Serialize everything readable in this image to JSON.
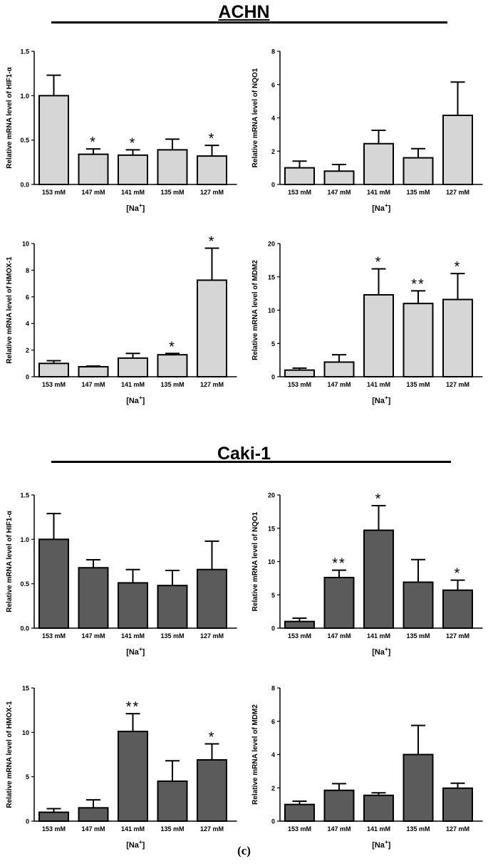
{
  "figure": {
    "sections": [
      {
        "title": "ACHN"
      },
      {
        "title": "Caki-1"
      }
    ],
    "caption": "(c)",
    "colors": {
      "achn_bar": "#d6d6d6",
      "caki_bar": "#5b5b5b",
      "axis": "#000000"
    }
  },
  "chart_data": [
    {
      "type": "bar",
      "cell_line": "ACHN",
      "title": "",
      "xlabel": "[Na+]",
      "xlabel_main": "[Na",
      "xlabel_sup": "+",
      "xlabel_end": "]",
      "ylabel": "Relative mRNA level of HIF1-α",
      "categories": [
        "153 mM",
        "147 mM",
        "141 mM",
        "135 mM",
        "127 mM"
      ],
      "values": [
        1.0,
        0.34,
        0.33,
        0.39,
        0.32
      ],
      "errors": [
        0.23,
        0.06,
        0.06,
        0.12,
        0.12
      ],
      "significance": [
        "",
        "*",
        "*",
        "",
        "*"
      ],
      "ylim": [
        0,
        1.5
      ],
      "yticks": [
        "0.0",
        "0.5",
        "1.0",
        "1.5"
      ],
      "grid": false
    },
    {
      "type": "bar",
      "cell_line": "ACHN",
      "title": "",
      "xlabel": "[Na+]",
      "xlabel_main": "[Na",
      "xlabel_sup": "+",
      "xlabel_end": "]",
      "ylabel": "Relative mRNA level of NQO1",
      "categories": [
        "153 mM",
        "147 mM",
        "141 mM",
        "135 mM",
        "127 mM"
      ],
      "values": [
        1.0,
        0.8,
        2.45,
        1.6,
        4.15
      ],
      "errors": [
        0.4,
        0.4,
        0.8,
        0.55,
        2.0
      ],
      "significance": [
        "",
        "",
        "",
        "",
        ""
      ],
      "ylim": [
        0,
        8
      ],
      "yticks": [
        "0",
        "2",
        "4",
        "6",
        "8"
      ],
      "grid": false
    },
    {
      "type": "bar",
      "cell_line": "ACHN",
      "title": "",
      "xlabel": "[Na+]",
      "xlabel_main": "[Na",
      "xlabel_sup": "+",
      "xlabel_end": "]",
      "ylabel": "Relative mRNA level of HMOX-1",
      "categories": [
        "153 mM",
        "147 mM",
        "141 mM",
        "135 mM",
        "127 mM"
      ],
      "values": [
        1.0,
        0.75,
        1.4,
        1.65,
        7.25
      ],
      "errors": [
        0.2,
        0.05,
        0.35,
        0.1,
        2.4
      ],
      "significance": [
        "",
        "",
        "",
        "*",
        "*"
      ],
      "ylim": [
        0,
        10
      ],
      "yticks": [
        "0",
        "2",
        "4",
        "6",
        "8",
        "10"
      ],
      "grid": false
    },
    {
      "type": "bar",
      "cell_line": "ACHN",
      "title": "",
      "xlabel": "[Na+]",
      "xlabel_main": "[Na",
      "xlabel_sup": "+",
      "xlabel_end": "]",
      "ylabel": "Relative mRNA level of MDM2",
      "categories": [
        "153 mM",
        "147 mM",
        "141 mM",
        "135 mM",
        "127 mM"
      ],
      "values": [
        1.0,
        2.2,
        12.3,
        11.0,
        11.6
      ],
      "errors": [
        0.3,
        1.1,
        3.9,
        1.9,
        3.9
      ],
      "significance": [
        "",
        "",
        "*",
        "**",
        "*"
      ],
      "ylim": [
        0,
        20
      ],
      "yticks": [
        "0",
        "5",
        "10",
        "15",
        "20"
      ],
      "grid": false
    },
    {
      "type": "bar",
      "cell_line": "Caki-1",
      "title": "",
      "xlabel": "[Na+]",
      "xlabel_main": "[Na",
      "xlabel_sup": "+",
      "xlabel_end": "]",
      "ylabel": "Relative mRNA level of HIF1-α",
      "categories": [
        "153 mM",
        "147 mM",
        "141 mM",
        "135 mM",
        "127 mM"
      ],
      "values": [
        1.0,
        0.68,
        0.51,
        0.48,
        0.66
      ],
      "errors": [
        0.29,
        0.09,
        0.15,
        0.17,
        0.32
      ],
      "significance": [
        "",
        "",
        "",
        "",
        ""
      ],
      "ylim": [
        0,
        1.5
      ],
      "yticks": [
        "0.0",
        "0.5",
        "1.0",
        "1.5"
      ],
      "grid": false
    },
    {
      "type": "bar",
      "cell_line": "Caki-1",
      "title": "",
      "xlabel": "[Na+]",
      "xlabel_main": "[Na",
      "xlabel_sup": "+",
      "xlabel_end": "]",
      "ylabel": "Relative mRNA level of NQO1",
      "categories": [
        "153 mM",
        "147 mM",
        "141 mM",
        "135 mM",
        "127 mM"
      ],
      "values": [
        1.0,
        7.6,
        14.7,
        6.9,
        5.7
      ],
      "errors": [
        0.5,
        1.1,
        3.7,
        3.4,
        1.5
      ],
      "significance": [
        "",
        "**",
        "*",
        "",
        "*"
      ],
      "ylim": [
        0,
        20
      ],
      "yticks": [
        "0",
        "5",
        "10",
        "15",
        "20"
      ],
      "grid": false
    },
    {
      "type": "bar",
      "cell_line": "Caki-1",
      "title": "",
      "xlabel": "[Na+]",
      "xlabel_main": "[Na",
      "xlabel_sup": "+",
      "xlabel_end": "]",
      "ylabel": "Relative mRNA level of HMOX-1",
      "categories": [
        "153 mM",
        "147 mM",
        "141 mM",
        "135 mM",
        "127 mM"
      ],
      "values": [
        1.0,
        1.5,
        10.1,
        4.5,
        6.9
      ],
      "errors": [
        0.4,
        0.9,
        2.0,
        2.3,
        1.8
      ],
      "significance": [
        "",
        "",
        "**",
        "",
        "*"
      ],
      "ylim": [
        0,
        15
      ],
      "yticks": [
        "0",
        "5",
        "10",
        "15"
      ],
      "grid": false
    },
    {
      "type": "bar",
      "cell_line": "Caki-1",
      "title": "",
      "xlabel": "[Na+]",
      "xlabel_main": "[Na",
      "xlabel_sup": "+",
      "xlabel_end": "]",
      "ylabel": "Relative mRNA level of MDM2",
      "categories": [
        "153 mM",
        "147 mM",
        "141 mM",
        "135 mM",
        "127 mM"
      ],
      "values": [
        1.0,
        1.85,
        1.55,
        4.0,
        1.98
      ],
      "errors": [
        0.2,
        0.4,
        0.15,
        1.75,
        0.3
      ],
      "significance": [
        "",
        "",
        "",
        "",
        ""
      ],
      "ylim": [
        0,
        8
      ],
      "yticks": [
        "0",
        "2",
        "4",
        "6",
        "8"
      ],
      "grid": false
    }
  ]
}
